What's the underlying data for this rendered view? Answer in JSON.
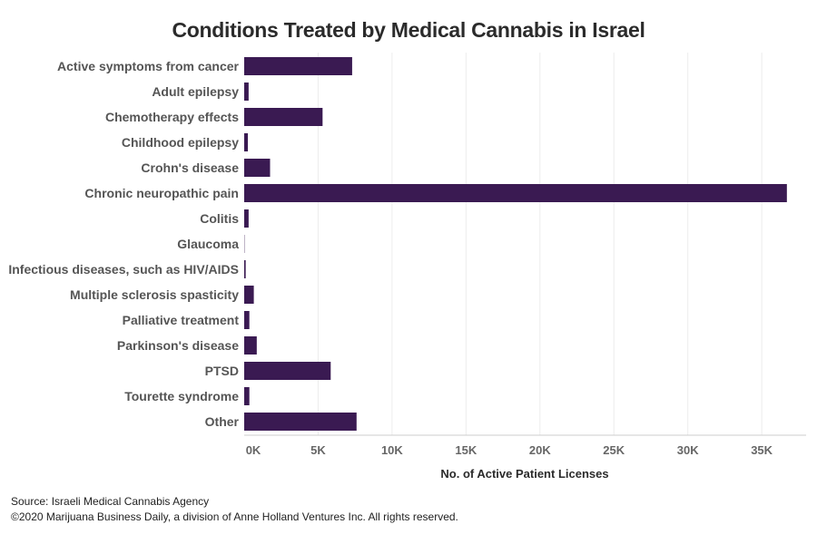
{
  "chart_data": {
    "type": "bar",
    "orientation": "horizontal",
    "title": "Conditions Treated by Medical Cannabis in Israel",
    "xlabel": "No. of Active Patient Licenses",
    "ylabel": "",
    "xlim": [
      0,
      38000
    ],
    "ticks": [
      {
        "value": 0,
        "label": "0K"
      },
      {
        "value": 5000,
        "label": "5K"
      },
      {
        "value": 10000,
        "label": "10K"
      },
      {
        "value": 15000,
        "label": "15K"
      },
      {
        "value": 20000,
        "label": "20K"
      },
      {
        "value": 25000,
        "label": "25K"
      },
      {
        "value": 30000,
        "label": "30K"
      },
      {
        "value": 35000,
        "label": "35K"
      }
    ],
    "categories": [
      "Active symptoms from cancer",
      "Adult epilepsy",
      "Chemotherapy effects",
      "Childhood epilepsy",
      "Crohn's disease",
      "Chronic neuropathic pain",
      "Colitis",
      "Glaucoma",
      "Infectious diseases, such as HIV/AIDS",
      "Multiple sclerosis spasticity",
      "Palliative treatment",
      "Parkinson's disease",
      "PTSD",
      "Tourette syndrome",
      "Other"
    ],
    "values": [
      7300,
      300,
      5300,
      250,
      1750,
      36700,
      300,
      20,
      100,
      650,
      350,
      850,
      5850,
      350,
      7600
    ],
    "bar_color": "#3a1a52",
    "grid": true
  },
  "footer": {
    "source": "Source: Israeli Medical Cannabis Agency",
    "copyright": "©2020 Marijuana Business Daily, a division of Anne Holland Ventures Inc. All rights reserved."
  }
}
